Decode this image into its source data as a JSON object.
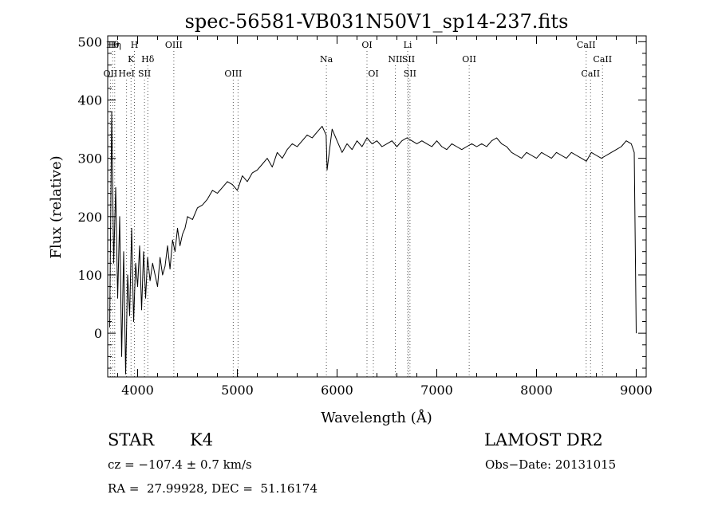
{
  "chart_data": {
    "type": "line",
    "title": "spec-56581-VB031N50V1_sp14-237.fits",
    "xlabel": "Wavelength (Å)",
    "ylabel": "Flux (relative)",
    "xlim": [
      3700,
      9100
    ],
    "ylim": [
      -75,
      510
    ],
    "xticks": [
      4000,
      5000,
      6000,
      7000,
      8000,
      9000
    ],
    "yticks": [
      0,
      100,
      200,
      300,
      400,
      500
    ],
    "grid": false,
    "line_color": "#000000",
    "series": [
      {
        "x": [
          3720,
          3740,
          3760,
          3780,
          3800,
          3820,
          3840,
          3860,
          3880,
          3900,
          3920,
          3940,
          3960,
          3980,
          4000,
          4020,
          4040,
          4060,
          4080,
          4100,
          4125,
          4150,
          4175,
          4200,
          4225,
          4250,
          4275,
          4300,
          4325,
          4350,
          4375,
          4400,
          4425,
          4450,
          4475,
          4500,
          4550,
          4600,
          4650,
          4700,
          4750,
          4800,
          4850,
          4900,
          4950,
          5000,
          5050,
          5100,
          5150,
          5200,
          5250,
          5300,
          5350,
          5400,
          5450,
          5500,
          5550,
          5600,
          5650,
          5700,
          5750,
          5800,
          5850,
          5890,
          5900,
          5950,
          6000,
          6050,
          6100,
          6150,
          6200,
          6250,
          6300,
          6350,
          6400,
          6450,
          6500,
          6550,
          6600,
          6650,
          6700,
          6750,
          6800,
          6850,
          6900,
          6950,
          7000,
          7050,
          7100,
          7150,
          7200,
          7250,
          7300,
          7350,
          7400,
          7450,
          7500,
          7550,
          7600,
          7650,
          7700,
          7750,
          7800,
          7850,
          7900,
          7950,
          8000,
          8050,
          8100,
          8150,
          8200,
          8250,
          8300,
          8350,
          8400,
          8450,
          8500,
          8550,
          8600,
          8650,
          8700,
          8750,
          8800,
          8850,
          8900,
          8950,
          8980,
          9000
        ],
        "y": [
          10,
          380,
          120,
          250,
          60,
          200,
          -40,
          140,
          -70,
          100,
          30,
          180,
          20,
          120,
          80,
          150,
          40,
          140,
          60,
          130,
          90,
          120,
          100,
          80,
          130,
          100,
          115,
          150,
          110,
          160,
          140,
          180,
          150,
          170,
          180,
          200,
          195,
          215,
          220,
          230,
          245,
          240,
          250,
          260,
          255,
          245,
          270,
          260,
          275,
          280,
          290,
          300,
          285,
          310,
          300,
          315,
          325,
          320,
          330,
          340,
          335,
          345,
          355,
          340,
          280,
          350,
          330,
          310,
          325,
          315,
          330,
          320,
          335,
          325,
          330,
          320,
          325,
          330,
          320,
          330,
          335,
          330,
          325,
          330,
          325,
          320,
          330,
          320,
          315,
          325,
          320,
          315,
          320,
          325,
          320,
          325,
          320,
          330,
          335,
          325,
          320,
          310,
          305,
          300,
          310,
          305,
          300,
          310,
          305,
          300,
          310,
          305,
          300,
          310,
          305,
          300,
          295,
          310,
          305,
          300,
          305,
          310,
          315,
          320,
          330,
          325,
          310,
          0
        ]
      }
    ],
    "lines": [
      {
        "wl": 3727,
        "label": "OII",
        "row": 2
      },
      {
        "wl": 3750,
        "label": "Hθ",
        "row": 0
      },
      {
        "wl": 3770,
        "label": "Hη",
        "row": 0
      },
      {
        "wl": 3889,
        "label": "HeI",
        "row": 2
      },
      {
        "wl": 3934,
        "label": "K",
        "row": 1
      },
      {
        "wl": 3968,
        "label": "H",
        "row": 0
      },
      {
        "wl": 4069,
        "label": "SII",
        "row": 2
      },
      {
        "wl": 4102,
        "label": "Hδ",
        "row": 1
      },
      {
        "wl": 4363,
        "label": "OIII",
        "row": 0
      },
      {
        "wl": 4959,
        "label": "OIII",
        "row": 2
      },
      {
        "wl": 5007,
        "label": "",
        "row": 2
      },
      {
        "wl": 5893,
        "label": "Na",
        "row": 1
      },
      {
        "wl": 6300,
        "label": "OI",
        "row": 0
      },
      {
        "wl": 6364,
        "label": "OI",
        "row": 2
      },
      {
        "wl": 6584,
        "label": "NII",
        "row": 1
      },
      {
        "wl": 6708,
        "label": "Li",
        "row": 0
      },
      {
        "wl": 6716,
        "label": "SII",
        "row": 1
      },
      {
        "wl": 6731,
        "label": "SII",
        "row": 2
      },
      {
        "wl": 7325,
        "label": "OII",
        "row": 1
      },
      {
        "wl": 8498,
        "label": "CaII",
        "row": 0
      },
      {
        "wl": 8542,
        "label": "CaII",
        "row": 2
      },
      {
        "wl": 8662,
        "label": "CaII",
        "row": 1
      }
    ]
  },
  "info": {
    "class_label": "STAR",
    "subclass_label": "K4",
    "survey_label": "LAMOST DR2",
    "cz_text": "cz = −107.4 ± 0.7 km/s",
    "obs_date_text": "Obs−Date: 20131015",
    "radec_text": "RA =  27.99928, DEC =  51.16174"
  }
}
